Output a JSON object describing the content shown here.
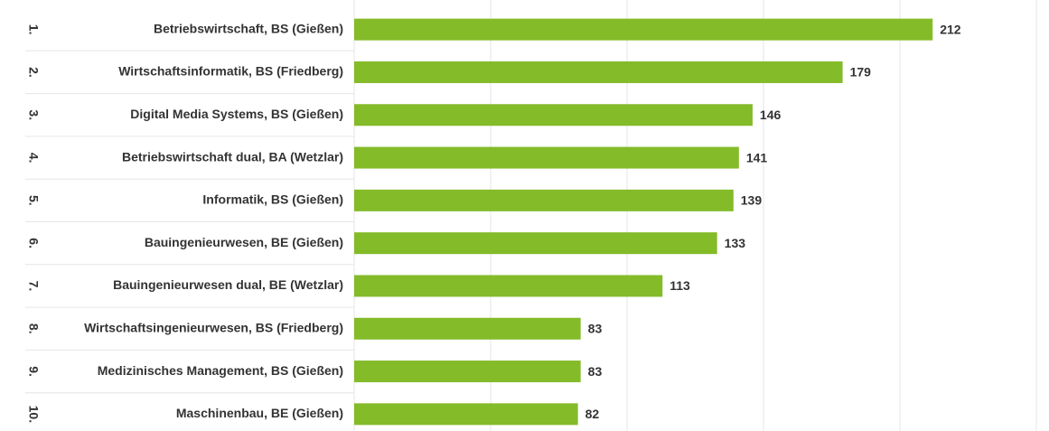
{
  "chart_data": {
    "type": "bar",
    "orientation": "horizontal",
    "ranks": [
      "1.",
      "2.",
      "3.",
      "4.",
      "5.",
      "6.",
      "7.",
      "8.",
      "9.",
      "10."
    ],
    "categories": [
      "Betriebswirtschaft, BS (Gießen)",
      "Wirtschaftsinformatik, BS (Friedberg)",
      "Digital Media Systems, BS (Gießen)",
      "Betriebswirtschaft dual, BA (Wetzlar)",
      "Informatik, BS (Gießen)",
      "Bauingenieurwesen, BE (Gießen)",
      "Bauingenieurwesen dual, BE (Wetzlar)",
      "Wirtschaftsingenieurwesen, BS (Friedberg)",
      "Medizinisches Management, BS (Gießen)",
      "Maschinenbau, BE (Gießen)"
    ],
    "values": [
      212,
      179,
      146,
      141,
      139,
      133,
      113,
      83,
      83,
      82
    ],
    "color": "#84bb29",
    "xlim": [
      0,
      250
    ],
    "xticks": [
      0,
      50,
      100,
      150,
      200,
      250
    ],
    "grid": true
  }
}
